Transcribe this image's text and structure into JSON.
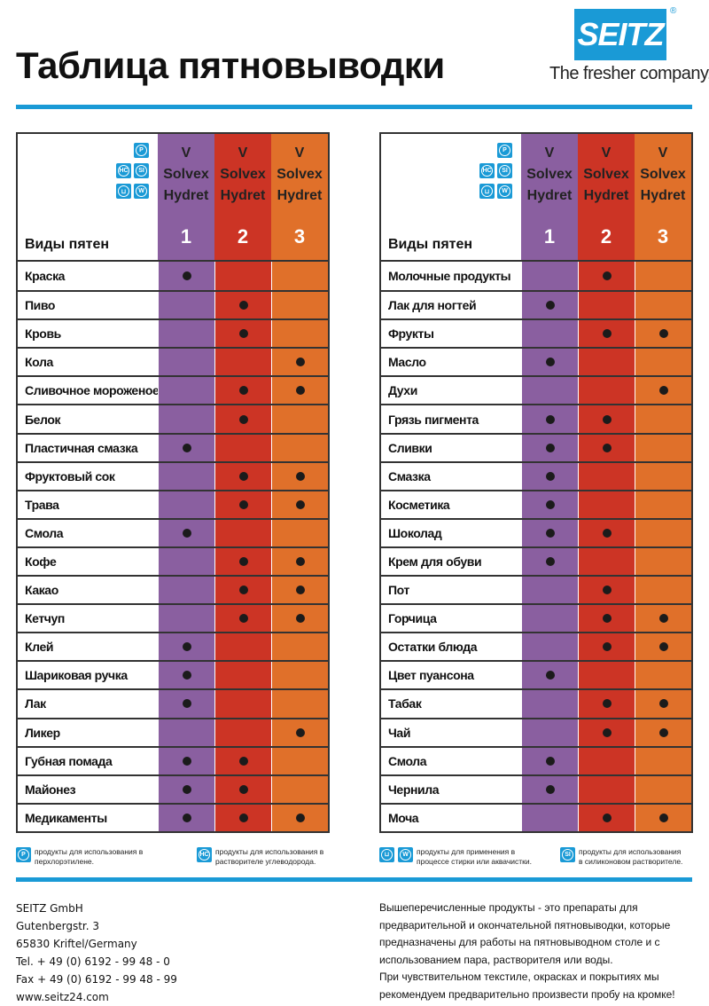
{
  "title": "Таблица пятновыводки",
  "brand": {
    "logo": "SEITZ",
    "registered": "®",
    "slogan": "The fresher company."
  },
  "colors": {
    "col1": "#8a5fa0",
    "col2": "#cc3425",
    "col3": "#e0702a",
    "accent": "#1a9ad6"
  },
  "header": {
    "label": "Виды пятен",
    "icons": [
      "P",
      "HC",
      "SI",
      "washtub",
      "W"
    ],
    "columns": [
      {
        "v": "V",
        "name1": "Solvex",
        "name2": "Hydret",
        "num": "1"
      },
      {
        "v": "V",
        "name1": "Solvex",
        "name2": "Hydret",
        "num": "2"
      },
      {
        "v": "V",
        "name1": "Solvex",
        "name2": "Hydret",
        "num": "3"
      }
    ]
  },
  "left_rows": [
    {
      "label": "Краска",
      "marks": [
        1
      ]
    },
    {
      "label": "Пиво",
      "marks": [
        2
      ]
    },
    {
      "label": "Кровь",
      "marks": [
        2
      ]
    },
    {
      "label": "Кола",
      "marks": [
        3
      ]
    },
    {
      "label": "Сливочное мороженое",
      "marks": [
        2,
        3
      ]
    },
    {
      "label": "Белок",
      "marks": [
        2
      ]
    },
    {
      "label": "Пластичная смазка",
      "marks": [
        1
      ]
    },
    {
      "label": "Фруктовый сок",
      "marks": [
        2,
        3
      ]
    },
    {
      "label": "Трава",
      "marks": [
        2,
        3
      ]
    },
    {
      "label": "Смола",
      "marks": [
        1
      ]
    },
    {
      "label": "Кофе",
      "marks": [
        2,
        3
      ]
    },
    {
      "label": "Какао",
      "marks": [
        2,
        3
      ]
    },
    {
      "label": "Кетчуп",
      "marks": [
        2,
        3
      ]
    },
    {
      "label": "Клей",
      "marks": [
        1
      ]
    },
    {
      "label": "Шариковая ручка",
      "marks": [
        1
      ]
    },
    {
      "label": "Лак",
      "marks": [
        1
      ]
    },
    {
      "label": "Ликер",
      "marks": [
        3
      ]
    },
    {
      "label": "Губная помада",
      "marks": [
        1,
        2
      ]
    },
    {
      "label": "Майонез",
      "marks": [
        1,
        2
      ]
    },
    {
      "label": "Медикаменты",
      "marks": [
        1,
        2,
        3
      ]
    }
  ],
  "right_rows": [
    {
      "label": "Молочные продукты",
      "marks": [
        2
      ]
    },
    {
      "label": "Лак для ногтей",
      "marks": [
        1
      ]
    },
    {
      "label": "Фрукты",
      "marks": [
        2,
        3
      ]
    },
    {
      "label": "Масло",
      "marks": [
        1
      ]
    },
    {
      "label": "Духи",
      "marks": [
        3
      ]
    },
    {
      "label": "Грязь пигмента",
      "marks": [
        1,
        2
      ]
    },
    {
      "label": "Сливки",
      "marks": [
        1,
        2
      ]
    },
    {
      "label": "Смазка",
      "marks": [
        1
      ]
    },
    {
      "label": "Косметика",
      "marks": [
        1
      ]
    },
    {
      "label": "Шоколад",
      "marks": [
        1,
        2
      ]
    },
    {
      "label": "Крем для обуви",
      "marks": [
        1
      ]
    },
    {
      "label": "Пот",
      "marks": [
        2
      ]
    },
    {
      "label": "Горчица",
      "marks": [
        2,
        3
      ]
    },
    {
      "label": "Остатки блюда",
      "marks": [
        2,
        3
      ]
    },
    {
      "label": "Цвет пуансона",
      "marks": [
        1
      ]
    },
    {
      "label": "Табак",
      "marks": [
        2,
        3
      ]
    },
    {
      "label": "Чай",
      "marks": [
        2,
        3
      ]
    },
    {
      "label": "Смола",
      "marks": [
        1
      ]
    },
    {
      "label": "Чернила",
      "marks": [
        1
      ]
    },
    {
      "label": "Моча",
      "marks": [
        2,
        3
      ]
    }
  ],
  "legend": [
    {
      "icons": [
        "P"
      ],
      "line1": "продукты для использования в",
      "line2": "перхлорэтилене."
    },
    {
      "icons": [
        "HC"
      ],
      "line1": "продукты для использования в",
      "line2": "растворителе углеводорода."
    },
    {
      "icons": [
        "washtub",
        "W"
      ],
      "line1": "продукты для применения в",
      "line2": "процессе стирки или аквачистки."
    },
    {
      "icons": [
        "SI"
      ],
      "line1": "продукты для использования",
      "line2": "в силиконовом растворителе."
    }
  ],
  "contact": [
    "SEITZ GmbH",
    "Gutenbergstr. 3",
    "65830 Kriftel/Germany",
    "Tel. + 49 (0) 6192 - 99 48 - 0",
    "Fax + 49 (0) 6192 - 99 48 - 99",
    "www.seitz24.com"
  ],
  "note": [
    "Вышеперечисленные продукты - это препараты для",
    "предварительной и окончательной пятновыводки, которые",
    "предназначены для работы на пятновыводном столе и с",
    "использованием пара, растворителя или воды.",
    "При чувствительном текстиле, окрасках и покрытиях мы",
    "рекомендуем предварительно произвести пробу на кромке!"
  ]
}
